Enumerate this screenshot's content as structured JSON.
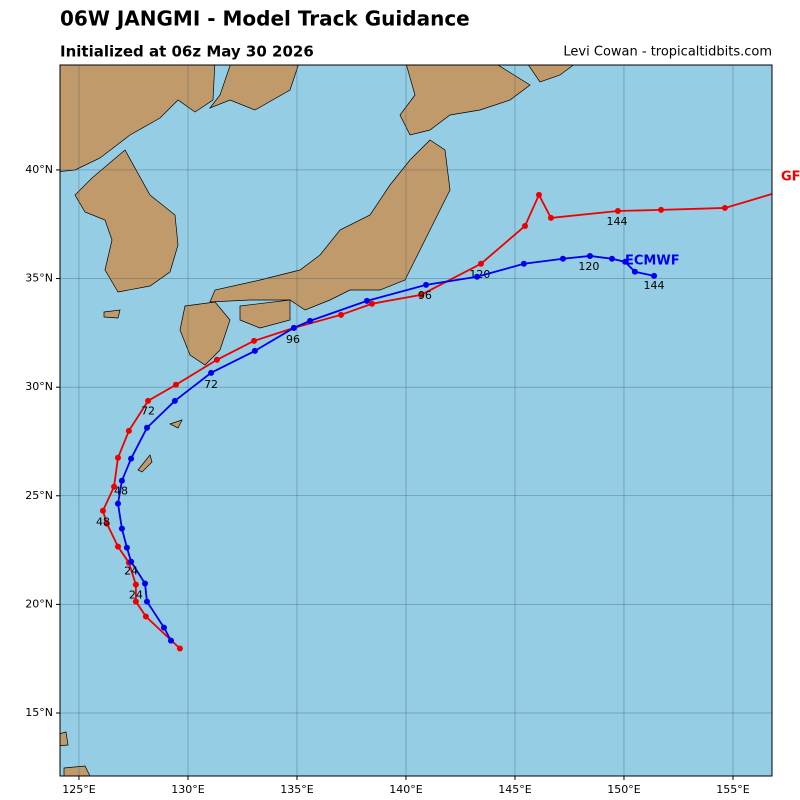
{
  "chart_data": {
    "type": "track_map",
    "title": "06W JANGMI - Model Track Guidance",
    "subtitle": "Initialized at 06z May 30 2026",
    "credit": "Levi Cowan - tropicaltidbits.com",
    "xlim": [
      124.13,
      156.79
    ],
    "ylim": [
      12.1,
      44.83
    ],
    "xticks": [
      {
        "value": 125,
        "label": "125°E"
      },
      {
        "value": 130,
        "label": "130°E"
      },
      {
        "value": 135,
        "label": "135°E"
      },
      {
        "value": 140,
        "label": "140°E"
      },
      {
        "value": 145,
        "label": "145°E"
      },
      {
        "value": 150,
        "label": "150°E"
      },
      {
        "value": 155,
        "label": "155°E"
      }
    ],
    "yticks": [
      {
        "value": 15,
        "label": "15°N"
      },
      {
        "value": 20,
        "label": "20°N"
      },
      {
        "value": 25,
        "label": "25°N"
      },
      {
        "value": 30,
        "label": "30°N"
      },
      {
        "value": 35,
        "label": "35°N"
      },
      {
        "value": 40,
        "label": "40°N"
      }
    ],
    "grid": true,
    "series": [
      {
        "name": "GFS",
        "color": "#ee0000",
        "lon": [
          129.63,
          128.07,
          127.61,
          127.61,
          127.29,
          126.79,
          126.28,
          126.1,
          126.61,
          126.79,
          127.29,
          128.17,
          129.45,
          131.33,
          133.03,
          134.86,
          137.02,
          138.44,
          140.69,
          143.44,
          145.46,
          146.1,
          146.65,
          149.72,
          151.7,
          154.63,
          158.5
        ],
        "lat": [
          17.97,
          19.44,
          20.13,
          20.91,
          21.92,
          22.66,
          23.72,
          24.31,
          25.42,
          26.75,
          27.99,
          29.37,
          30.11,
          31.26,
          32.13,
          32.73,
          33.33,
          33.84,
          34.25,
          35.68,
          37.42,
          38.85,
          37.79,
          38.11,
          38.16,
          38.25,
          39.4
        ],
        "point_labels": [
          {
            "label": "24",
            "lon": 127.61,
            "lat": 20.4
          },
          {
            "label": "48",
            "lon": 126.1,
            "lat": 23.76
          },
          {
            "label": "72",
            "lon": 128.17,
            "lat": 28.87
          },
          {
            "label": "96",
            "lon": 134.82,
            "lat": 32.18
          },
          {
            "label": "120",
            "lon": 143.39,
            "lat": 35.17
          },
          {
            "label": "144",
            "lon": 149.68,
            "lat": 37.61
          }
        ]
      },
      {
        "name": "ECMWF",
        "color": "#0000ee",
        "lon": [
          129.22,
          128.9,
          128.12,
          128.03,
          127.39,
          127.2,
          126.97,
          126.79,
          126.97,
          127.39,
          128.12,
          129.4,
          131.06,
          133.07,
          134.86,
          135.6,
          138.21,
          140.92,
          143.26,
          145.41,
          147.2,
          148.44,
          149.45,
          150.05,
          150.5,
          151.38
        ],
        "lat": [
          18.33,
          18.93,
          20.13,
          20.96,
          21.97,
          22.61,
          23.49,
          24.64,
          25.69,
          26.71,
          28.13,
          29.37,
          30.66,
          31.67,
          32.73,
          33.05,
          33.97,
          34.71,
          35.08,
          35.68,
          35.91,
          36.04,
          35.91,
          35.77,
          35.31,
          35.12
        ],
        "point_labels": [
          {
            "label": "24",
            "lon": 127.39,
            "lat": 21.51
          },
          {
            "label": "48",
            "lon": 126.93,
            "lat": 25.19
          },
          {
            "label": "72",
            "lon": 131.06,
            "lat": 30.11
          },
          {
            "label": "96",
            "lon": 140.87,
            "lat": 34.2
          },
          {
            "label": "120",
            "lon": 148.39,
            "lat": 35.54
          },
          {
            "label": "144",
            "lon": 151.38,
            "lat": 34.66
          }
        ]
      }
    ]
  }
}
